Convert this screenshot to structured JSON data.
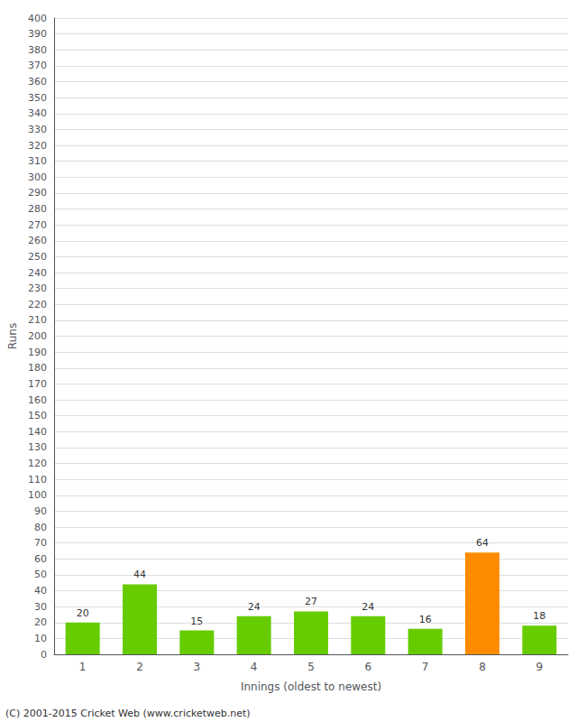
{
  "chart_data": {
    "type": "bar",
    "xlabel": "Innings (oldest to newest)",
    "ylabel": "Runs",
    "categories": [
      "1",
      "2",
      "3",
      "4",
      "5",
      "6",
      "7",
      "8",
      "9"
    ],
    "values": [
      20,
      44,
      15,
      24,
      27,
      24,
      16,
      64,
      18
    ],
    "colors": [
      "#66cc00",
      "#66cc00",
      "#66cc00",
      "#66cc00",
      "#66cc00",
      "#66cc00",
      "#66cc00",
      "#ff8c00",
      "#66cc00"
    ],
    "ylim": [
      0,
      400
    ],
    "yticks": [
      0,
      10,
      20,
      30,
      40,
      50,
      60,
      70,
      80,
      90,
      100,
      110,
      120,
      130,
      140,
      150,
      160,
      170,
      180,
      190,
      200,
      210,
      220,
      230,
      240,
      250,
      260,
      270,
      280,
      290,
      300,
      310,
      320,
      330,
      340,
      350,
      360,
      370,
      380,
      390,
      400
    ],
    "grid": true,
    "data_labels": true,
    "footer": "(C) 2001-2015 Cricket Web (www.cricketweb.net)"
  }
}
